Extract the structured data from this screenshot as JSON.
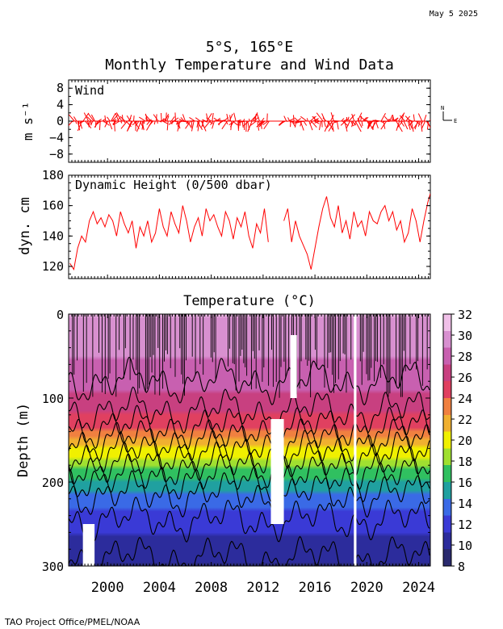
{
  "date_stamp": "May  5 2025",
  "title_line1": "5°S, 165°E",
  "title_line2": "Monthly Temperature and Wind Data",
  "footer": "TAO Project Office/PMEL/NOAA",
  "compass": {
    "north": "N",
    "east": "E"
  },
  "chart_data": [
    {
      "type": "line",
      "panel": "wind",
      "label": "Wind",
      "ylabel": "m s⁻¹",
      "yticks": [
        "8",
        "4",
        "0",
        "−4",
        "−8"
      ],
      "ylim": [
        -10,
        10
      ],
      "xlim": [
        1997.0,
        2024.9
      ],
      "color": "#ff0000",
      "note": "monthly wind vectors (stick plot)"
    },
    {
      "type": "line",
      "panel": "dynamic_height",
      "label": "Dynamic Height (0/500 dbar)",
      "ylabel": "dyn. cm",
      "yticks": [
        "180",
        "160",
        "140",
        "120"
      ],
      "ylim": [
        112,
        180
      ],
      "xlim": [
        1997.0,
        2024.9
      ],
      "color": "#ff0000",
      "series": [
        {
          "x": [
            1997.1,
            1997.4,
            1997.7,
            1998.0,
            1998.3,
            1998.6,
            1998.9,
            1999.2,
            1999.5,
            1999.8,
            2000.1,
            2000.4,
            2000.7,
            2001.0,
            2001.3,
            2001.6,
            2001.9,
            2002.2,
            2002.5,
            2002.8,
            2003.1,
            2003.4,
            2003.7,
            2004.0,
            2004.3,
            2004.6,
            2004.9,
            2005.2,
            2005.5,
            2005.8,
            2006.1,
            2006.4,
            2006.7,
            2007.0,
            2007.3,
            2007.6,
            2007.9,
            2008.2,
            2008.5,
            2008.8,
            2009.1,
            2009.4,
            2009.7,
            2010.0,
            2010.3,
            2010.6,
            2010.9,
            2011.2,
            2011.5,
            2011.8,
            2012.1,
            2012.4
          ],
          "y": [
            122,
            118,
            132,
            140,
            136,
            150,
            156,
            148,
            152,
            146,
            154,
            150,
            140,
            156,
            148,
            142,
            150,
            132,
            146,
            140,
            150,
            136,
            142,
            158,
            146,
            140,
            156,
            148,
            142,
            160,
            150,
            136,
            146,
            152,
            140,
            158,
            150,
            154,
            146,
            140,
            156,
            150,
            138,
            152,
            146,
            156,
            140,
            132,
            148,
            142,
            158,
            136
          ]
        },
        {
          "x": [
            2013.6,
            2013.9,
            2014.2,
            2014.5,
            2014.8,
            2015.1,
            2015.4,
            2015.7,
            2016.0,
            2016.3,
            2016.6,
            2016.9,
            2017.2,
            2017.5,
            2017.8,
            2018.1,
            2018.4,
            2018.7,
            2019.0,
            2019.3,
            2019.6,
            2019.9,
            2020.2,
            2020.5,
            2020.8,
            2021.1,
            2021.4,
            2021.7,
            2022.0,
            2022.3,
            2022.6,
            2022.9,
            2023.2,
            2023.5,
            2023.8,
            2024.1,
            2024.4,
            2024.7,
            2024.9
          ],
          "y": [
            150,
            158,
            136,
            150,
            140,
            134,
            128,
            118,
            132,
            146,
            158,
            166,
            152,
            146,
            160,
            142,
            150,
            138,
            156,
            146,
            150,
            140,
            156,
            150,
            148,
            156,
            160,
            150,
            156,
            144,
            150,
            136,
            142,
            158,
            150,
            136,
            150,
            162,
            168
          ]
        }
      ]
    },
    {
      "type": "heatmap",
      "panel": "temperature",
      "title": "Temperature (°C)",
      "ylabel": "Depth (m)",
      "yticks": [
        "0",
        "100",
        "200",
        "300"
      ],
      "ylim": [
        0,
        300
      ],
      "xlim": [
        1997.0,
        2024.9
      ],
      "xticks": [
        "2000",
        "2004",
        "2008",
        "2012",
        "2016",
        "2020",
        "2024"
      ],
      "colorbar": {
        "ticks": [
          "32",
          "30",
          "28",
          "26",
          "24",
          "22",
          "20",
          "18",
          "16",
          "14",
          "12",
          "10",
          "8"
        ],
        "range": [
          8,
          32
        ],
        "colors": [
          "#2a2a6e",
          "#2c2c9c",
          "#3a3ad6",
          "#3a6ae6",
          "#20a0a0",
          "#30c060",
          "#a0e030",
          "#f0f000",
          "#f0b030",
          "#f08040",
          "#e04060",
          "#c84080",
          "#c860b0",
          "#d890d0",
          "#f0c0e8"
        ]
      },
      "isotherm_depths_m": {
        "28": 80,
        "26": 115,
        "24": 135,
        "22": 150,
        "20": 165,
        "18": 180,
        "16": 195,
        "14": 215,
        "12": 245,
        "10": 290
      },
      "gaps": [
        {
          "x0": 1998.1,
          "x1": 1999.0,
          "depth0": 250,
          "depth1": 300
        },
        {
          "x0": 2012.6,
          "x1": 2013.6,
          "depth0": 125,
          "depth1": 250
        },
        {
          "x0": 2014.1,
          "x1": 2014.6,
          "depth0": 25,
          "depth1": 100
        },
        {
          "x0": 2019.0,
          "x1": 2019.2,
          "depth0": 0,
          "depth1": 300
        }
      ]
    }
  ]
}
